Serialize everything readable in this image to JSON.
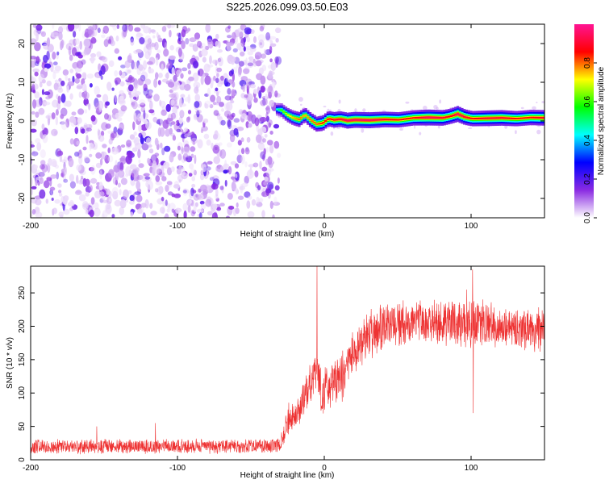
{
  "figure": {
    "title": "S225.2026.099.03.50.E03"
  },
  "chart_data": [
    {
      "type": "heatmap",
      "title": "S225.2026.099.03.50.E03",
      "xlabel": "Height of straight line (km)",
      "ylabel": "Frequency (Hz)",
      "xlim": [
        -200,
        150
      ],
      "ylim": [
        -25,
        25
      ],
      "xticks": [
        {
          "value": -200,
          "label": "-200"
        },
        {
          "value": -100,
          "label": "-100"
        },
        {
          "value": 0,
          "label": "0"
        },
        {
          "value": 100,
          "label": "100"
        }
      ],
      "yticks": [
        {
          "value": -20,
          "label": "-20"
        },
        {
          "value": -10,
          "label": "-10"
        },
        {
          "value": 0,
          "label": "0"
        },
        {
          "value": 10,
          "label": "10"
        },
        {
          "value": 20,
          "label": "20"
        }
      ],
      "noise_region_x": [
        -200,
        -33
      ],
      "ridge": {
        "x": [
          -33,
          -30,
          -26,
          -22,
          -18,
          -14,
          -10,
          -6,
          -2,
          2,
          6,
          10,
          15,
          20,
          30,
          40,
          50,
          60,
          70,
          80,
          85,
          90,
          95,
          100,
          110,
          120,
          130,
          140,
          150
        ],
        "frequency": [
          3.0,
          2.8,
          1.6,
          0.8,
          0.4,
          1.6,
          0.2,
          -0.8,
          -0.6,
          0.6,
          0.3,
          0.5,
          0.1,
          0.3,
          0.2,
          0.4,
          0.3,
          0.8,
          0.9,
          0.8,
          1.2,
          1.8,
          1.0,
          0.6,
          0.7,
          0.8,
          0.6,
          0.9,
          0.8
        ],
        "amplitude": [
          0.45,
          0.6,
          0.7,
          0.75,
          0.8,
          0.75,
          0.8,
          0.8,
          0.85,
          0.85,
          0.9,
          0.9,
          0.95,
          0.95,
          0.95,
          0.9,
          0.85,
          0.85,
          0.95,
          0.9,
          0.85,
          0.95,
          0.9,
          0.85,
          0.9,
          0.9,
          0.85,
          0.85,
          0.9
        ]
      },
      "colorbar": {
        "label": "Normalized spectral amplitude",
        "range": [
          0.0,
          1.0
        ],
        "ticks": [
          {
            "value": 0.0,
            "label": "0.0"
          },
          {
            "value": 0.2,
            "label": "0.2"
          },
          {
            "value": 0.4,
            "label": "0.4"
          },
          {
            "value": 0.6,
            "label": "0.6"
          },
          {
            "value": 0.8,
            "label": "0.8"
          }
        ],
        "colors": [
          "#ffffff",
          "#8a2be2",
          "#0000ff",
          "#00ffff",
          "#00ff00",
          "#ffff00",
          "#ff0000",
          "#ff1493"
        ]
      }
    },
    {
      "type": "line",
      "xlabel": "Height of straight line (km)",
      "ylabel": "SNR (10 * v/v)",
      "xlim": [
        -200,
        150
      ],
      "ylim": [
        0,
        290
      ],
      "xticks": [
        {
          "value": -200,
          "label": "-200"
        },
        {
          "value": -100,
          "label": "-100"
        },
        {
          "value": 0,
          "label": "0"
        },
        {
          "value": 100,
          "label": "100"
        }
      ],
      "yticks": [
        {
          "value": 0,
          "label": "0"
        },
        {
          "value": 50,
          "label": "50"
        },
        {
          "value": 100,
          "label": "100"
        },
        {
          "value": 150,
          "label": "150"
        },
        {
          "value": 200,
          "label": "200"
        },
        {
          "value": 250,
          "label": "250"
        }
      ],
      "color": "#ee3333",
      "series": [
        {
          "name": "SNR",
          "envelope_x": [
            -200,
            -150,
            -100,
            -50,
            -30,
            -25,
            -20,
            -15,
            -10,
            -5,
            -2,
            5,
            10,
            15,
            20,
            30,
            40,
            50,
            60,
            70,
            80,
            90,
            95,
            100,
            105,
            110,
            120,
            130,
            140,
            150
          ],
          "envelope_mean": [
            20,
            20,
            20,
            20,
            22,
            60,
            70,
            85,
            110,
            140,
            100,
            110,
            120,
            135,
            160,
            185,
            200,
            205,
            205,
            205,
            205,
            205,
            205,
            200,
            205,
            205,
            200,
            195,
            195,
            195
          ],
          "envelope_spread": [
            12,
            12,
            12,
            12,
            12,
            25,
            25,
            30,
            35,
            35,
            40,
            40,
            40,
            40,
            40,
            40,
            40,
            38,
            38,
            38,
            38,
            40,
            40,
            40,
            40,
            38,
            38,
            38,
            38,
            38
          ],
          "spikes": [
            {
              "x": -5,
              "value": 290
            },
            {
              "x": 97,
              "value": 255
            },
            {
              "x": 101,
              "value": 285
            },
            {
              "x": 101.5,
              "value": 70
            },
            {
              "x": -115,
              "value": 55
            },
            {
              "x": -155,
              "value": 50
            }
          ]
        }
      ]
    }
  ]
}
